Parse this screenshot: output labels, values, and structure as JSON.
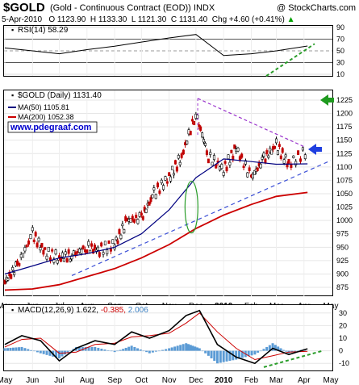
{
  "header": {
    "ticker": "$GOLD",
    "description": "(Gold - Continuous Contract (EOD)) INDX",
    "copyright": "@ StockCharts.com",
    "quote_date": "5-Apr-2010",
    "quote_open": "O 1123.90",
    "quote_high": "H 1133.30",
    "quote_low": "L 1121.30",
    "quote_close": "C 1131.40",
    "quote_change": "Chg +4.60 (+0.41%)",
    "quote_arrow": "▲"
  },
  "chart_data": [
    {
      "type": "line",
      "panel": "rsi",
      "legend": "RSI(14) 58.29",
      "yticks": [
        10,
        30,
        50,
        70,
        90
      ],
      "ylim": [
        10,
        90
      ],
      "reference_lines": [
        30,
        70
      ],
      "color": "#000000",
      "annotation": "rising green dashed trend line under RSI lows in Mar-Apr 2010",
      "x": [
        "2009-05-01",
        "2009-06-01",
        "2009-07-01",
        "2009-08-01",
        "2009-09-01",
        "2009-10-01",
        "2009-11-01",
        "2009-12-01",
        "2010-01-01",
        "2010-02-01",
        "2010-03-01",
        "2010-04-05"
      ],
      "values": [
        55,
        50,
        45,
        52,
        58,
        65,
        72,
        78,
        42,
        45,
        50,
        58.29
      ]
    },
    {
      "type": "candlestick",
      "panel": "price",
      "legend": "$GOLD (Daily) 1131.40",
      "ylim": [
        860,
        1240
      ],
      "yticks": [
        875,
        900,
        925,
        950,
        975,
        1000,
        1025,
        1050,
        1075,
        1100,
        1125,
        1150,
        1175,
        1200,
        1225
      ],
      "xticks": [
        "May",
        "Jun",
        "Jul",
        "Aug",
        "Sep",
        "Oct",
        "Nov",
        "Dec",
        "2010",
        "Feb",
        "Mar",
        "Apr",
        "May"
      ],
      "watermark": "www.pdegraaf.com",
      "grid": true,
      "series": [
        {
          "name": "$GOLD (Daily) 1131.40",
          "color": "#000000",
          "x": [
            "2009-05-01",
            "2009-05-15",
            "2009-06-01",
            "2009-06-15",
            "2009-07-01",
            "2009-07-15",
            "2009-08-01",
            "2009-08-15",
            "2009-09-01",
            "2009-09-15",
            "2009-10-01",
            "2009-10-15",
            "2009-11-01",
            "2009-11-15",
            "2009-12-01",
            "2009-12-15",
            "2010-01-01",
            "2010-01-15",
            "2010-02-01",
            "2010-02-15",
            "2010-03-01",
            "2010-03-15",
            "2010-04-05"
          ],
          "values": [
            885,
            915,
            975,
            940,
            930,
            935,
            950,
            945,
            955,
            1000,
            1005,
            1050,
            1080,
            1120,
            1200,
            1120,
            1095,
            1135,
            1080,
            1115,
            1140,
            1105,
            1131.4
          ]
        },
        {
          "name": "MA(50) 1105.81",
          "color": "#000080",
          "x": [
            "2009-05-01",
            "2009-06-01",
            "2009-07-01",
            "2009-08-01",
            "2009-09-01",
            "2009-10-01",
            "2009-11-01",
            "2009-12-01",
            "2010-01-01",
            "2010-02-01",
            "2010-03-01",
            "2010-04-05"
          ],
          "values": [
            900,
            915,
            930,
            938,
            950,
            975,
            1020,
            1080,
            1115,
            1110,
            1105,
            1105.81
          ]
        },
        {
          "name": "MA(200) 1052.38",
          "color": "#cc0000",
          "x": [
            "2009-05-01",
            "2009-06-01",
            "2009-07-01",
            "2009-08-01",
            "2009-09-01",
            "2009-10-01",
            "2009-11-01",
            "2009-12-01",
            "2010-01-01",
            "2010-02-01",
            "2010-03-01",
            "2010-04-05"
          ],
          "values": [
            870,
            872,
            880,
            895,
            910,
            930,
            955,
            985,
            1010,
            1030,
            1045,
            1052.38
          ]
        }
      ],
      "annotations": [
        "purple dashed descending trend line from the December high",
        "blue dashed ascending trend line from the July low",
        "green ellipse near late November / early December",
        "green arrow at 1225",
        "blue arrow at 1130"
      ]
    },
    {
      "type": "line",
      "panel": "macd",
      "legend_label": "MACD(12,26,9)",
      "legend_macd": "1.622",
      "legend_signal": "-0.385",
      "legend_hist": "2.006",
      "yticks": [
        -10,
        0,
        10,
        20,
        30
      ],
      "ylim": [
        -15,
        35
      ],
      "xticks": [
        "May",
        "Jun",
        "Jul",
        "Aug",
        "Sep",
        "Oct",
        "Nov",
        "Dec",
        "2010",
        "Feb",
        "Mar",
        "Apr",
        "May"
      ],
      "series": [
        {
          "name": "MACD(12,26,9)",
          "color": "#000000",
          "x": [
            "2009-05-01",
            "2009-05-20",
            "2009-06-10",
            "2009-07-01",
            "2009-07-20",
            "2009-08-10",
            "2009-09-01",
            "2009-09-20",
            "2009-10-10",
            "2009-11-01",
            "2009-11-20",
            "2009-12-05",
            "2009-12-25",
            "2010-01-15",
            "2010-02-05",
            "2010-02-25",
            "2010-03-15",
            "2010-04-05"
          ],
          "values": [
            5,
            12,
            8,
            -8,
            2,
            8,
            5,
            15,
            10,
            16,
            28,
            32,
            5,
            -5,
            -10,
            2,
            -3,
            1.622
          ]
        },
        {
          "name": "signal",
          "color": "#cc0000",
          "x": [
            "2009-05-01",
            "2009-05-20",
            "2009-06-10",
            "2009-07-01",
            "2009-07-20",
            "2009-08-10",
            "2009-09-01",
            "2009-09-20",
            "2009-10-10",
            "2009-11-01",
            "2009-11-20",
            "2009-12-05",
            "2009-12-25",
            "2010-01-15",
            "2010-02-05",
            "2010-02-25",
            "2010-03-15",
            "2010-04-05"
          ],
          "values": [
            3,
            9,
            10,
            -2,
            -1,
            5,
            6,
            11,
            12,
            14,
            22,
            30,
            15,
            2,
            -7,
            -4,
            -1,
            -0.385
          ]
        }
      ],
      "histogram_color": "#5b9bd5",
      "annotation": "rising green dashed line under MACD lows in Feb-Apr 2010"
    }
  ]
}
